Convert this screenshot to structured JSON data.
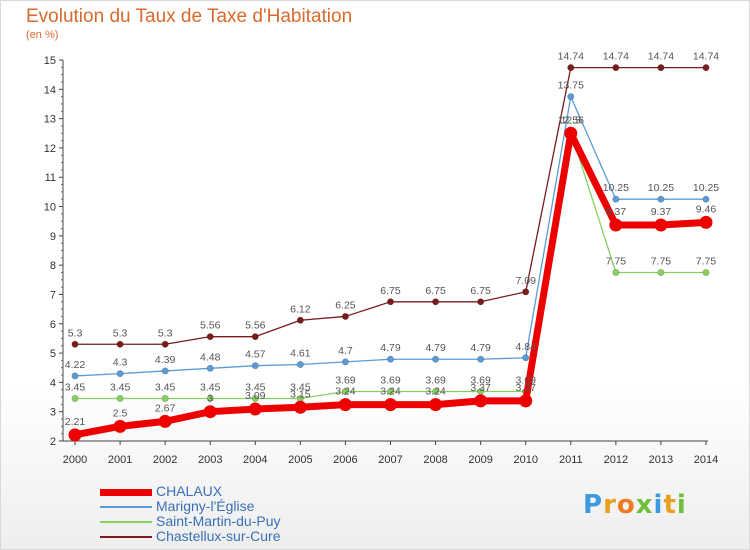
{
  "title": "Evolution du Taux de Taxe d'Habitation",
  "unit": "(en %)",
  "logo": "Proxiti",
  "logo_colors": [
    "#3b9be0",
    "#e8a020",
    "#f07a20",
    "#6fbf3a",
    "#3b9be0",
    "#e8a020",
    "#6fbf3a"
  ],
  "chart_data": {
    "type": "line",
    "x": [
      2000,
      2001,
      2002,
      2003,
      2004,
      2005,
      2006,
      2007,
      2008,
      2009,
      2010,
      2011,
      2012,
      2013,
      2014
    ],
    "ylim": [
      2,
      15
    ],
    "yticks": [
      2,
      3,
      4,
      5,
      6,
      7,
      8,
      9,
      10,
      11,
      12,
      13,
      14,
      15
    ],
    "grid": false,
    "legend": "bottom-left",
    "series": [
      {
        "name": "Chastellux-sur-Cure",
        "color": "#7a1c1c",
        "values": [
          5.3,
          5.3,
          5.3,
          5.56,
          5.56,
          6.12,
          6.25,
          6.75,
          6.75,
          6.75,
          7.09,
          14.74,
          14.74,
          14.74,
          14.74
        ],
        "labels": [
          "5.3",
          "5.3",
          "5.3",
          "5.56",
          "5.56",
          "6.12",
          "6.25",
          "6.75",
          "6.75",
          "6.75",
          "7.09",
          "14.74",
          "14.74",
          "14.74",
          "14.74"
        ]
      },
      {
        "name": "Marigny-l'Église",
        "color": "#5b9bd5",
        "values": [
          4.22,
          4.3,
          4.39,
          4.48,
          4.57,
          4.61,
          4.7,
          4.79,
          4.79,
          4.79,
          4.84,
          13.75,
          10.25,
          10.25,
          10.25
        ],
        "labels": [
          "4.22",
          "4.3",
          "4.39",
          "4.48",
          "4.57",
          "4.61",
          "4.7",
          "4.79",
          "4.79",
          "4.79",
          "4.84",
          "13.75",
          "10.25",
          "10.25",
          "10.25"
        ]
      },
      {
        "name": "Saint-Martin-du-Puy",
        "color": "#88d060",
        "values": [
          3.45,
          3.45,
          3.45,
          3.45,
          3.45,
          3.45,
          3.69,
          3.69,
          3.69,
          3.69,
          3.69,
          12.56,
          7.75,
          7.75,
          7.75
        ],
        "labels": [
          "3.45",
          "3.45",
          "3.45",
          "3.45",
          "3.45",
          "3.45",
          "3.69",
          "3.69",
          "3.69",
          "3.69",
          "3.69",
          "12.56",
          "7.75",
          "7.75",
          "7.75"
        ]
      },
      {
        "name": "CHALAUX",
        "color": "#ee0000",
        "values": [
          2.21,
          2.5,
          2.67,
          3.0,
          3.09,
          3.15,
          3.24,
          3.24,
          3.24,
          3.37,
          3.37,
          12.5,
          9.37,
          9.37,
          9.46
        ],
        "labels": [
          "2.21",
          "2.5",
          "2.67",
          "3",
          "3.09",
          "3.15",
          "3.24",
          "3.24",
          "3.24",
          "3.37",
          "3.37",
          "12.5",
          "9.37",
          "9.37",
          "9.46"
        ]
      }
    ],
    "legend_entries": [
      {
        "name": "CHALAUX",
        "color": "#ee0000",
        "weight": 7
      },
      {
        "name": "Marigny-l'Église",
        "color": "#5b9bd5",
        "weight": 1.5
      },
      {
        "name": "Saint-Martin-du-Puy",
        "color": "#88d060",
        "weight": 1.5
      },
      {
        "name": "Chastellux-sur-Cure",
        "color": "#7a1c1c",
        "weight": 1.5
      }
    ]
  }
}
